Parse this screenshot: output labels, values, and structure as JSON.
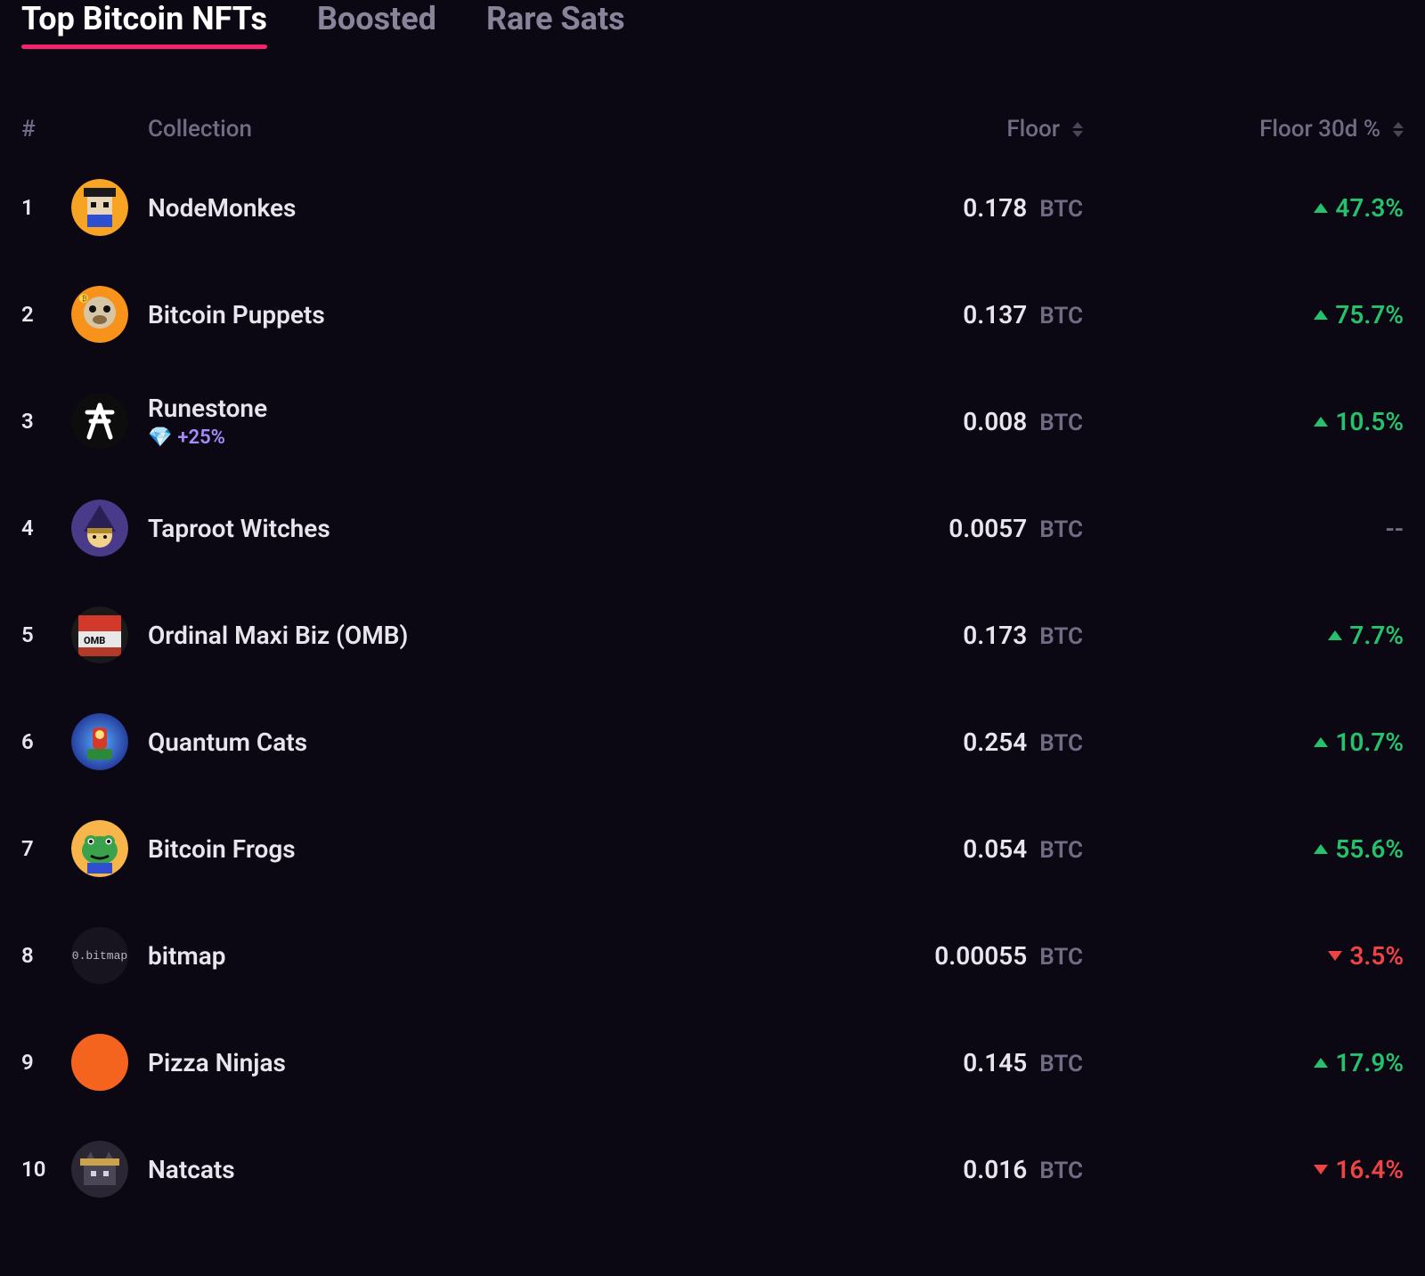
{
  "colors": {
    "background": "#0b0713",
    "text": "#e8e6ed",
    "muted": "#716c83",
    "accent_pink": "#f6226c",
    "green": "#25c26e",
    "red": "#ef4444",
    "purple": "#a78bfa"
  },
  "tabs": {
    "active": "Top Bitcoin NFTs",
    "items": [
      "Top Bitcoin NFTs",
      "Boosted",
      "Rare Sats"
    ]
  },
  "table": {
    "currency_unit": "BTC",
    "columns": {
      "rank": "#",
      "collection": "Collection",
      "floor": "Floor",
      "floor30d": "Floor 30d %"
    },
    "rows": [
      {
        "rank": 1,
        "name": "NodeMonkes",
        "floor": "0.178",
        "change": "47.3%",
        "dir": "up",
        "avatar": "nodemonkes"
      },
      {
        "rank": 2,
        "name": "Bitcoin Puppets",
        "floor": "0.137",
        "change": "75.7%",
        "dir": "up",
        "avatar": "puppets"
      },
      {
        "rank": 3,
        "name": "Runestone",
        "floor": "0.008",
        "change": "10.5%",
        "dir": "up",
        "avatar": "runestone",
        "boost": "+25%"
      },
      {
        "rank": 4,
        "name": "Taproot Witches",
        "floor": "0.0057",
        "change": "--",
        "dir": "none",
        "avatar": "witches"
      },
      {
        "rank": 5,
        "name": "Ordinal Maxi Biz (OMB)",
        "floor": "0.173",
        "change": "7.7%",
        "dir": "up",
        "avatar": "omb"
      },
      {
        "rank": 6,
        "name": "Quantum Cats",
        "floor": "0.254",
        "change": "10.7%",
        "dir": "up",
        "avatar": "quantum"
      },
      {
        "rank": 7,
        "name": "Bitcoin Frogs",
        "floor": "0.054",
        "change": "55.6%",
        "dir": "up",
        "avatar": "frogs"
      },
      {
        "rank": 8,
        "name": "bitmap",
        "floor": "0.00055",
        "change": "3.5%",
        "dir": "down",
        "avatar": "bitmap"
      },
      {
        "rank": 9,
        "name": "Pizza Ninjas",
        "floor": "0.145",
        "change": "17.9%",
        "dir": "up",
        "avatar": "pizza"
      },
      {
        "rank": 10,
        "name": "Natcats",
        "floor": "0.016",
        "change": "16.4%",
        "dir": "down",
        "avatar": "natcats"
      }
    ]
  },
  "avatar_styles": {
    "nodemonkes": {
      "type": "svg_nodemonkes"
    },
    "puppets": {
      "type": "svg_puppets"
    },
    "runestone": {
      "type": "svg_runestone"
    },
    "witches": {
      "type": "svg_witches"
    },
    "omb": {
      "type": "svg_omb"
    },
    "quantum": {
      "type": "svg_quantum"
    },
    "frogs": {
      "type": "svg_frogs"
    },
    "bitmap": {
      "type": "text",
      "bg": "#17141f",
      "label": "0.bitmap",
      "color": "#b9b4c7"
    },
    "pizza": {
      "type": "solid",
      "bg": "#f4641e"
    },
    "natcats": {
      "type": "svg_natcats"
    }
  }
}
